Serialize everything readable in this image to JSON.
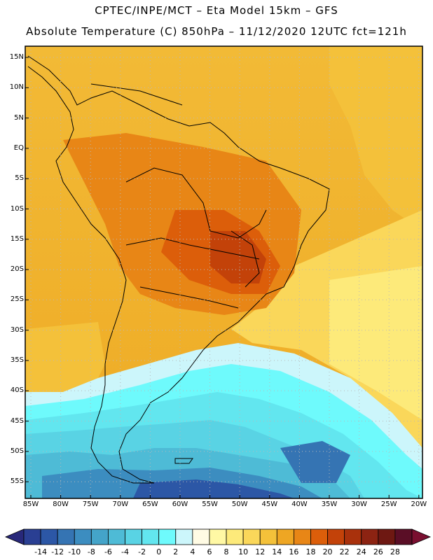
{
  "header": {
    "line1": "CPTEC/INPE/MCT –  Eta Model 15km – GFS",
    "line2": "Absolute Temperature (C) 850hPa – 11/12/2020 12UTC fct=121h"
  },
  "map": {
    "lat_labels": [
      "15N",
      "10N",
      "5N",
      "EQ",
      "5S",
      "10S",
      "15S",
      "20S",
      "25S",
      "30S",
      "35S",
      "40S",
      "45S",
      "50S",
      "55S"
    ],
    "lon_labels": [
      "85W",
      "80W",
      "75W",
      "70W",
      "65W",
      "60W",
      "55W",
      "50W",
      "45W",
      "40W",
      "35W",
      "30W",
      "25W",
      "20W"
    ]
  },
  "colorbar": {
    "labels": [
      "-14",
      "-12",
      "-10",
      "-8",
      "-6",
      "-4",
      "-2",
      "0",
      "2",
      "4",
      "6",
      "8",
      "10",
      "12",
      "14",
      "16",
      "18",
      "20",
      "22",
      "24",
      "26",
      "28"
    ],
    "colors": [
      "#2a3f93",
      "#2c57a6",
      "#3574b3",
      "#3c8dc0",
      "#44a4c9",
      "#4ebbd6",
      "#59d3e4",
      "#62e6ef",
      "#6efafc",
      "#ccf6fb",
      "#fffbe4",
      "#fff8a4",
      "#fdea7a",
      "#fad75a",
      "#f4c13a",
      "#eea623",
      "#e88616",
      "#dc5e0a",
      "#c34209",
      "#a9310c",
      "#8c2312",
      "#6e1812",
      "#5a0e26"
    ],
    "under_color": "#28287a",
    "over_color": "#7a0f30"
  }
}
